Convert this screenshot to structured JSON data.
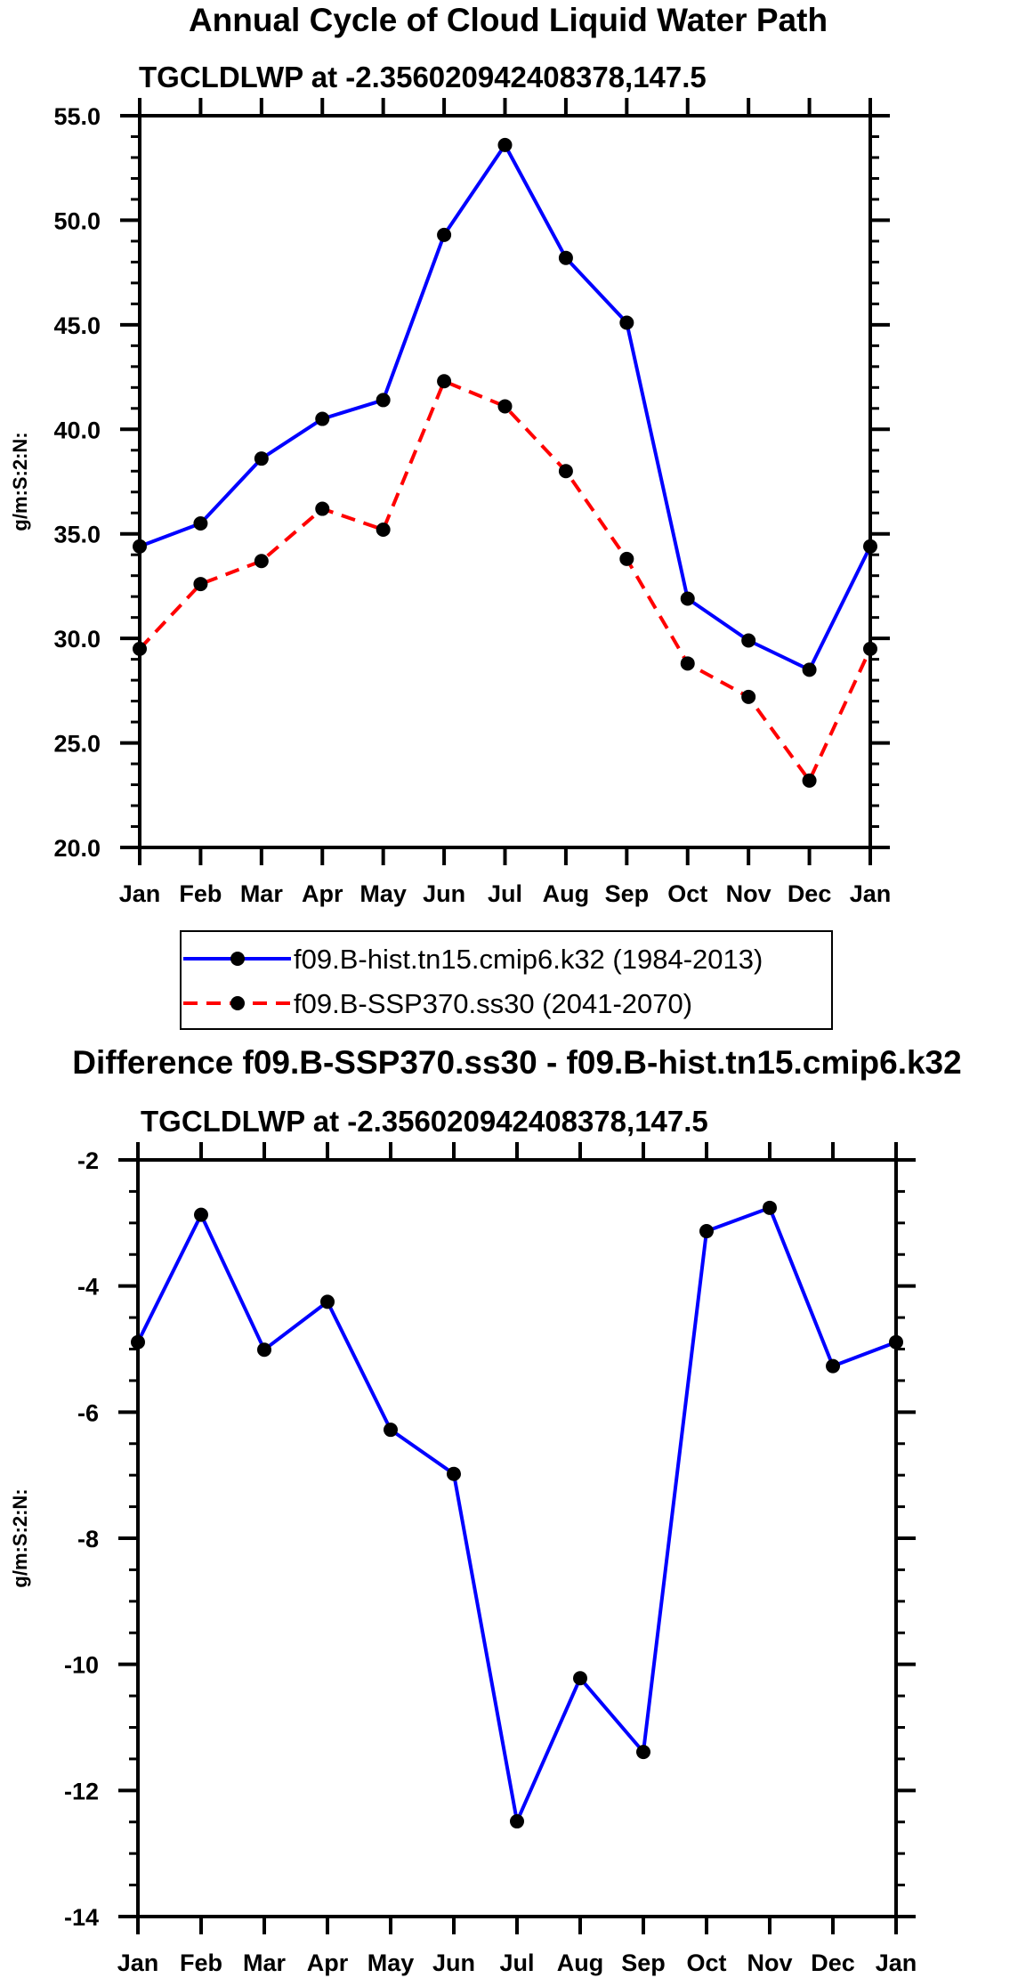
{
  "chart_data": [
    {
      "type": "line",
      "title": "Annual Cycle of Cloud Liquid Water Path",
      "subtitle": "TGCLDLWP at -2.356020942408378,147.5",
      "xlabel": "",
      "ylabel": "g/m:S:2:N:",
      "categories": [
        "Jan",
        "Feb",
        "Mar",
        "Apr",
        "May",
        "Jun",
        "Jul",
        "Aug",
        "Sep",
        "Oct",
        "Nov",
        "Dec",
        "Jan"
      ],
      "ylim": [
        20,
        55
      ],
      "yticks": [
        "20.0",
        "25.0",
        "30.0",
        "35.0",
        "40.0",
        "45.0",
        "50.0",
        "55.0"
      ],
      "legend_position": "bottom",
      "series": [
        {
          "name": "f09.B-hist.tn15.cmip6.k32 (1984-2013)",
          "color": "#0000ff",
          "dash": "solid",
          "values": [
            34.4,
            35.5,
            38.6,
            40.5,
            41.4,
            49.3,
            53.6,
            48.2,
            45.1,
            31.9,
            29.9,
            28.5,
            34.4
          ]
        },
        {
          "name": "f09.B-SSP370.ss30 (2041-2070)",
          "color": "#ff0000",
          "dash": "dashed",
          "values": [
            29.5,
            32.6,
            33.7,
            36.2,
            35.2,
            42.3,
            41.1,
            38.0,
            33.8,
            28.8,
            27.2,
            23.2,
            29.5
          ]
        }
      ]
    },
    {
      "type": "line",
      "title": "Difference f09.B-SSP370.ss30 - f09.B-hist.tn15.cmip6.k32",
      "subtitle": "TGCLDLWP at -2.356020942408378,147.5",
      "xlabel": "",
      "ylabel": "g/m:S:2:N:",
      "categories": [
        "Jan",
        "Feb",
        "Mar",
        "Apr",
        "May",
        "Jun",
        "Jul",
        "Aug",
        "Sep",
        "Oct",
        "Nov",
        "Dec",
        "Jan"
      ],
      "ylim": [
        -14,
        -2
      ],
      "yticks": [
        "-14",
        "-12",
        "-10",
        "-8",
        "-6",
        "-4",
        "-2"
      ],
      "series": [
        {
          "name": "Difference",
          "color": "#0000ff",
          "dash": "solid",
          "values": [
            -4.89,
            -2.87,
            -5.01,
            -4.25,
            -6.28,
            -6.98,
            -12.49,
            -10.22,
            -11.39,
            -3.13,
            -2.76,
            -5.27,
            -4.89
          ]
        }
      ]
    }
  ]
}
